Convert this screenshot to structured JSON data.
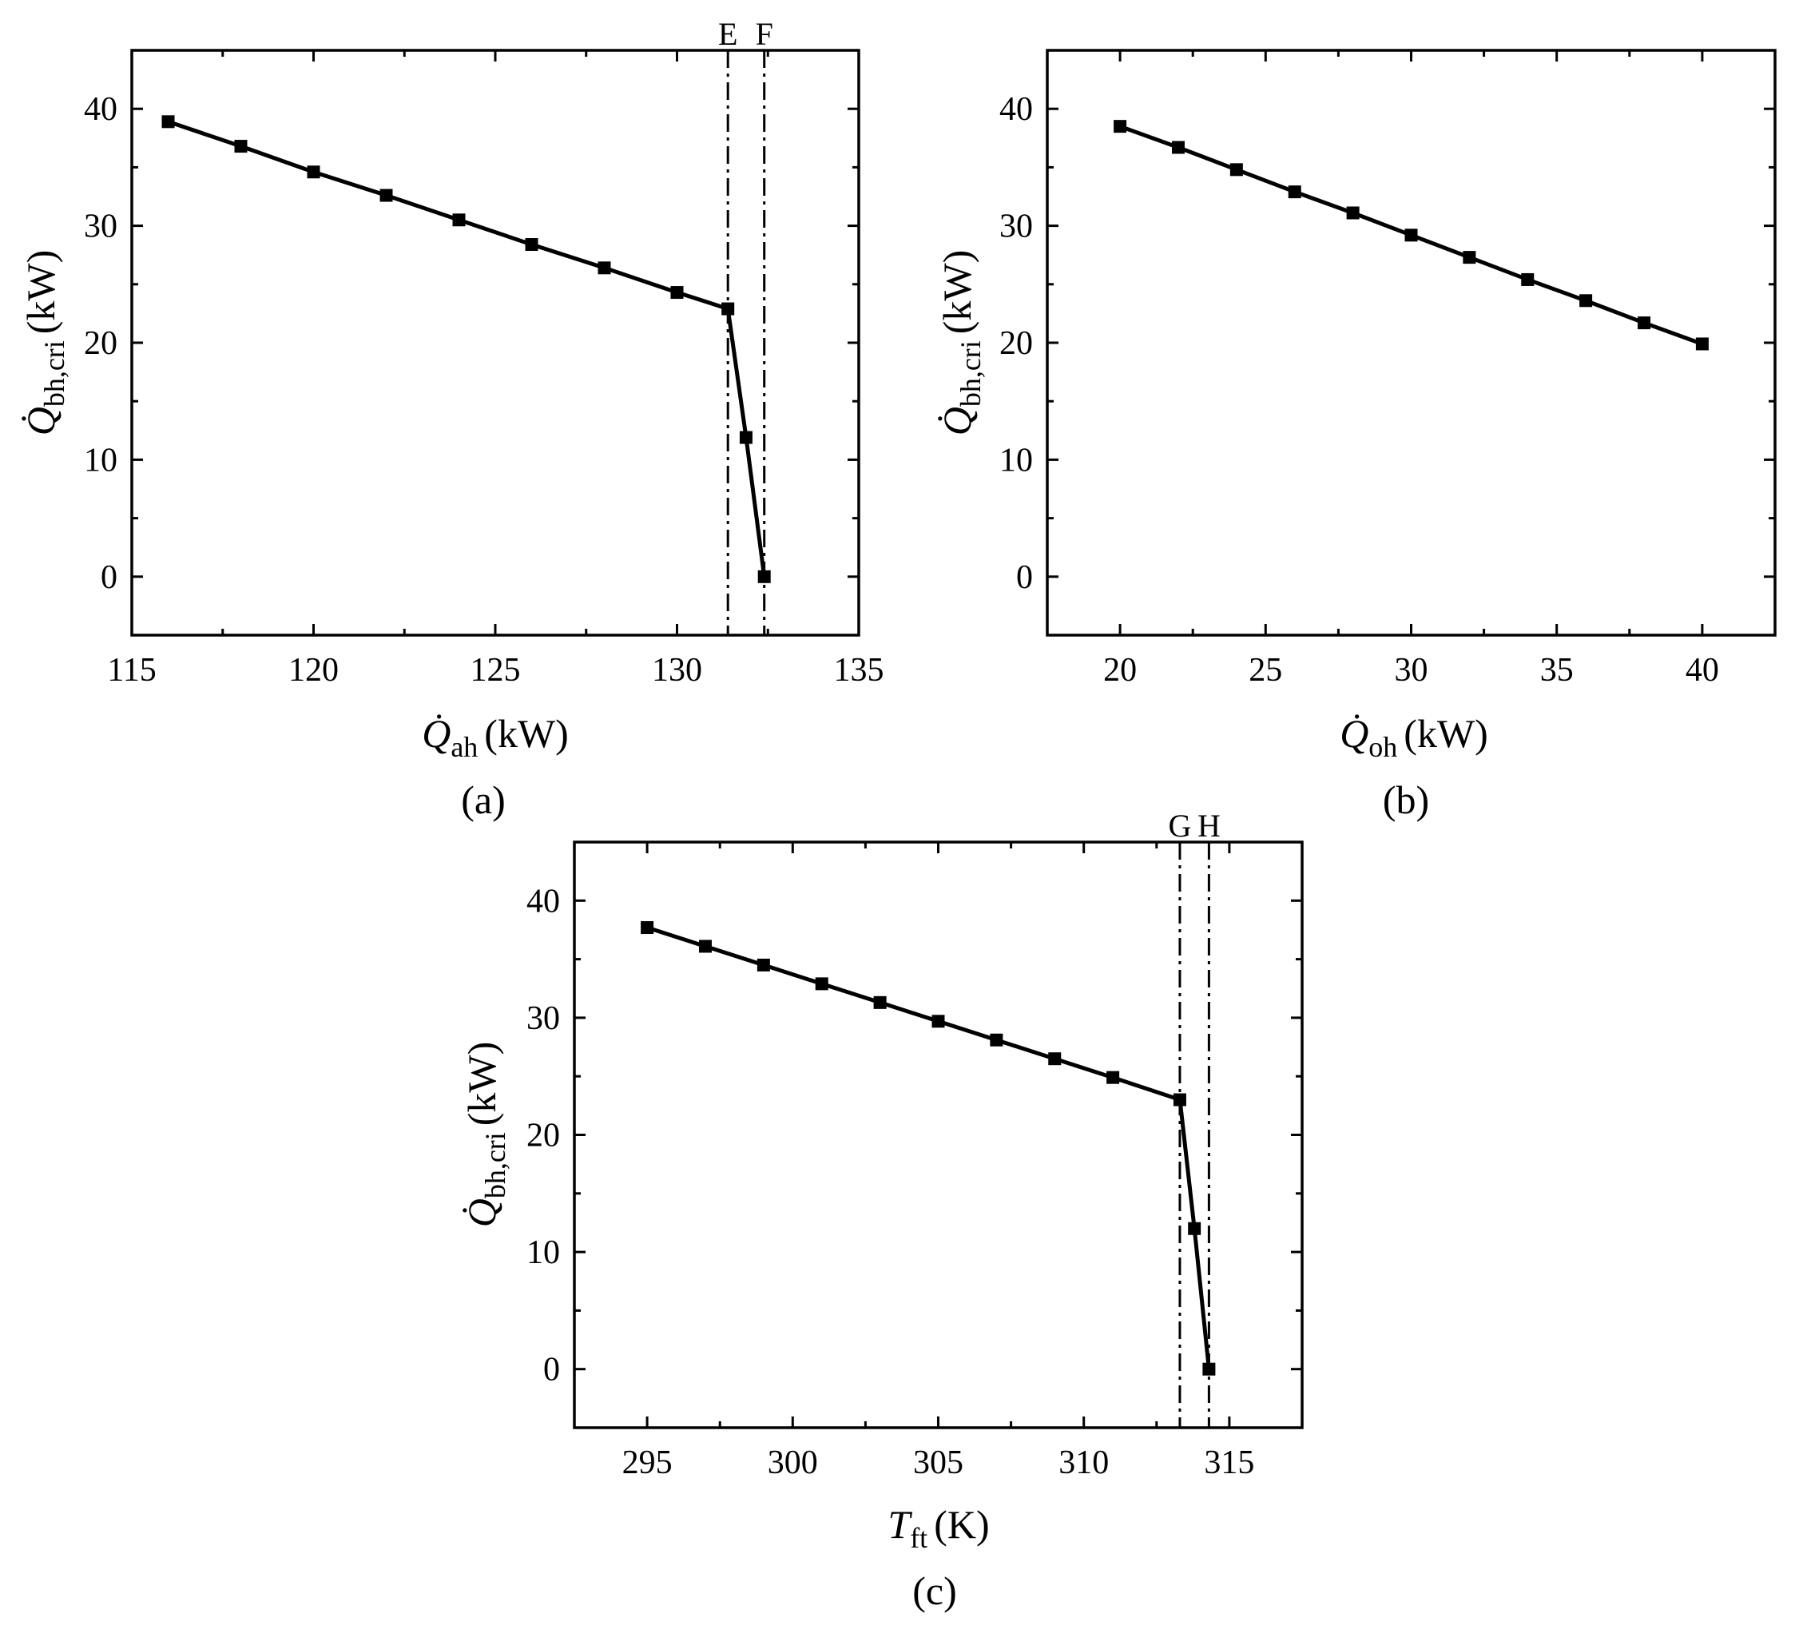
{
  "chart_data": [
    {
      "id": "a",
      "type": "line",
      "panel_label": "(a)",
      "xlabel_symbol": "Q",
      "xlabel_sub": "ah",
      "xlabel_unit": "(kW)",
      "ylabel_symbol": "Q",
      "ylabel_sub": "bh,cri",
      "ylabel_unit": "(kW)",
      "xlim": [
        115,
        135
      ],
      "ylim": [
        -5,
        45
      ],
      "xticks": [
        115,
        120,
        125,
        130,
        135
      ],
      "yticks": [
        0,
        10,
        20,
        30,
        40
      ],
      "x": [
        116,
        118,
        120,
        122,
        124,
        126,
        128,
        130,
        131.4,
        131.9,
        132.4
      ],
      "y": [
        38.9,
        36.8,
        34.6,
        32.6,
        30.5,
        28.4,
        26.4,
        24.3,
        22.9,
        11.9,
        0
      ],
      "vlines": [
        {
          "x": 131.4,
          "label": "E"
        },
        {
          "x": 132.4,
          "label": "F"
        }
      ]
    },
    {
      "id": "b",
      "type": "line",
      "panel_label": "(b)",
      "xlabel_symbol": "Q",
      "xlabel_sub": "oh",
      "xlabel_unit": "(kW)",
      "ylabel_symbol": "Q",
      "ylabel_sub": "bh,cri",
      "ylabel_unit": "(kW)",
      "xlim": [
        17.5,
        42.5
      ],
      "ylim": [
        -5,
        45
      ],
      "xticks": [
        20,
        25,
        30,
        35,
        40
      ],
      "yticks": [
        0,
        10,
        20,
        30,
        40
      ],
      "x": [
        20,
        22,
        24,
        26,
        28,
        30,
        32,
        34,
        36,
        38,
        40
      ],
      "y": [
        38.5,
        36.7,
        34.8,
        32.9,
        31.1,
        29.2,
        27.3,
        25.4,
        23.6,
        21.7,
        19.9
      ],
      "vlines": []
    },
    {
      "id": "c",
      "type": "line",
      "panel_label": "(c)",
      "xlabel_symbol": "T",
      "xlabel_sub": "ft",
      "xlabel_unit": "(K)",
      "ylabel_symbol": "Q",
      "ylabel_sub": "bh,cri",
      "ylabel_unit": "(kW)",
      "xlim": [
        292.5,
        317.5
      ],
      "ylim": [
        -5,
        45
      ],
      "xticks": [
        295,
        300,
        305,
        310,
        315
      ],
      "yticks": [
        0,
        10,
        20,
        30,
        40
      ],
      "x": [
        295,
        297,
        299,
        301,
        303,
        305,
        307,
        309,
        311,
        313.3,
        313.8,
        314.3
      ],
      "y": [
        37.7,
        36.1,
        34.5,
        32.9,
        31.3,
        29.7,
        28.1,
        26.5,
        24.9,
        23.0,
        12.0,
        0
      ],
      "vlines": [
        {
          "x": 313.3,
          "label": "G"
        },
        {
          "x": 314.3,
          "label": "H"
        }
      ]
    }
  ]
}
